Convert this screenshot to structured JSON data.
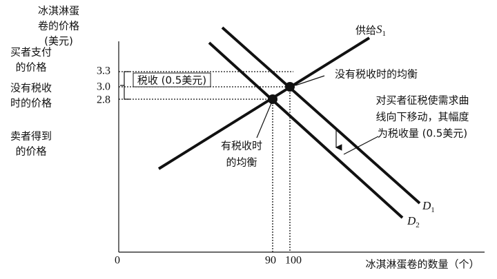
{
  "axes": {
    "y_title": [
      "冰淇淋蛋",
      "卷的价格",
      "(美元)"
    ],
    "x_title": "冰淇淋蛋卷的数量（个）",
    "origin": "0"
  },
  "y_ticks": [
    "3.3",
    "3.0",
    "2.8"
  ],
  "x_ticks": [
    "90",
    "100"
  ],
  "price_labels": {
    "buyer": [
      "买者支付",
      "的价格"
    ],
    "no_tax": [
      "没有税收",
      "时的价格"
    ],
    "seller": [
      "卖者得到",
      "的价格"
    ]
  },
  "tax_label": "税收 (0.5美元)",
  "curves": {
    "supply": {
      "text": "供给",
      "symbol": "S",
      "subscript": "1"
    },
    "d1": {
      "symbol": "D",
      "subscript": "1"
    },
    "d2": {
      "symbol": "D",
      "subscript": "2"
    }
  },
  "annotations": {
    "no_tax_equilibrium": "没有税收时的均衡",
    "tax_equilibrium": [
      "有税收时",
      "的均衡"
    ],
    "shift_note": [
      "对买者征税使需求曲",
      "线向下移动，其幅度",
      "为税收量 (0.5美元)"
    ]
  }
}
